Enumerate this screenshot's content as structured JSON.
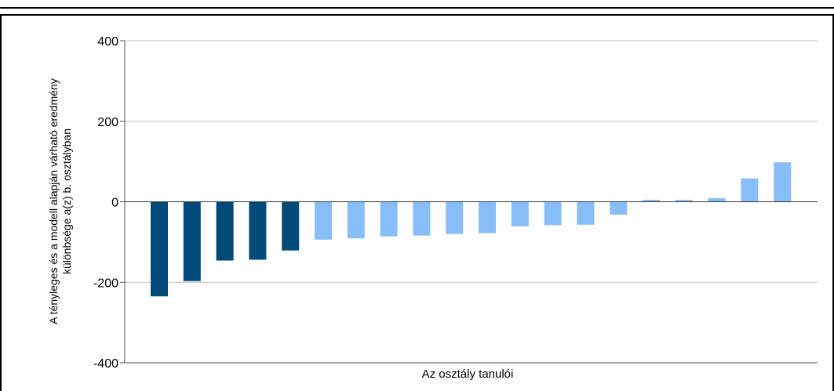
{
  "chart_data": {
    "type": "bar",
    "xlabel": "Az osztály tanulói",
    "ylabel_lines": [
      "A tényleges és a modell alapján várható eredmény",
      "különbsége a(z) b. osztályban"
    ],
    "ylim": [
      -400,
      400
    ],
    "yticks": [
      "400",
      "200",
      "0",
      "-200",
      "-400"
    ],
    "grid": true,
    "legend": "none",
    "values": [
      -235,
      -197,
      -146,
      -144,
      -121,
      -94,
      -91,
      -86,
      -84,
      -80,
      -78,
      -61,
      -58,
      -57,
      -32,
      5,
      5,
      9,
      58,
      98
    ],
    "colors": {
      "dark": "#024a79",
      "light": "#88bdf8",
      "grid": "#bdbdbd"
    },
    "dark_count": 5
  }
}
